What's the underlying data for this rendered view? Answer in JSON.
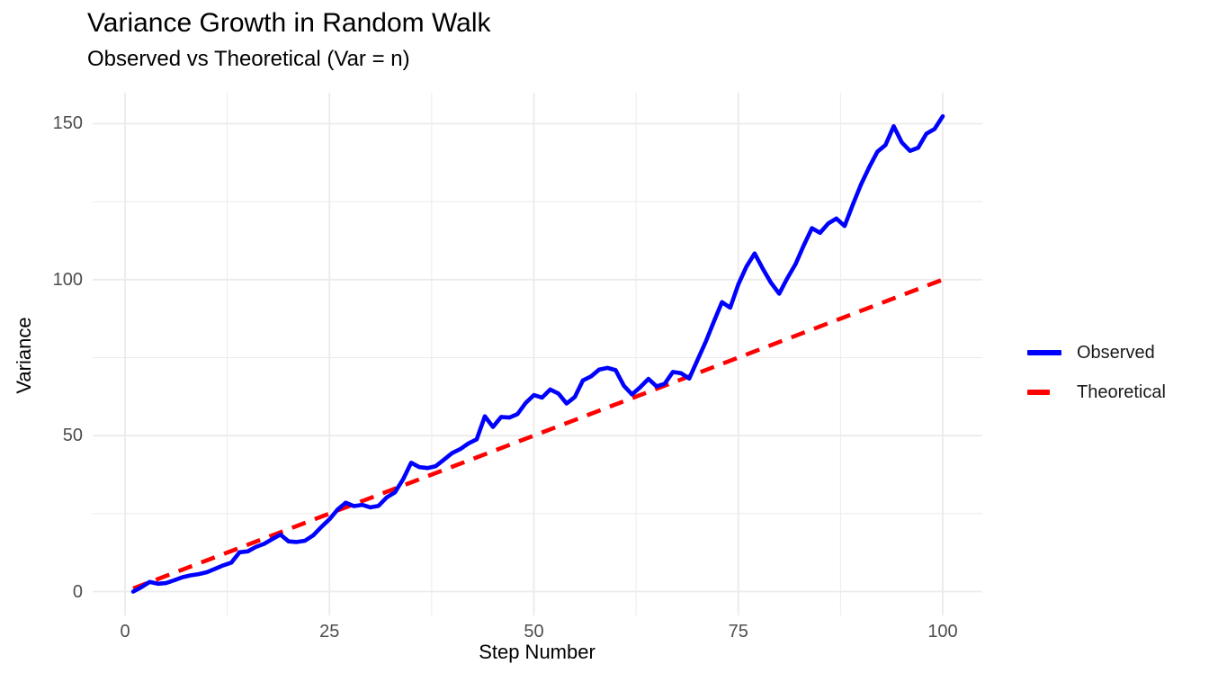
{
  "chart": {
    "title": "Variance Growth in Random Walk",
    "subtitle": "Observed vs Theoretical (Var = n)",
    "xlabel": "Step Number",
    "ylabel": "Variance"
  },
  "legend": {
    "position": "right",
    "items": [
      {
        "label": "Observed",
        "color": "#0000FF",
        "style": "solid"
      },
      {
        "label": "Theoretical",
        "color": "#FF0000",
        "style": "dashed"
      }
    ]
  },
  "colors": {
    "background": "#FFFFFF",
    "grid": "#EBEBEB",
    "tick_text": "#4D4D4D",
    "title_text": "#000000",
    "observed": "#0000FF",
    "theoretical": "#FF0000"
  },
  "chart_data": {
    "type": "line",
    "title": "Variance Growth in Random Walk",
    "subtitle": "Observed vs Theoretical (Var = n)",
    "xlabel": "Step Number",
    "ylabel": "Variance",
    "xlim": [
      -4,
      105
    ],
    "ylim": [
      -8,
      160
    ],
    "x_ticks": [
      0,
      25,
      50,
      75,
      100
    ],
    "y_ticks": [
      0,
      50,
      100,
      150
    ],
    "x_minor_ticks": [
      12.5,
      37.5,
      62.5,
      87.5
    ],
    "y_minor_ticks": [
      25,
      75,
      125
    ],
    "grid": true,
    "legend_position": "right",
    "series": [
      {
        "name": "Observed",
        "color": "#0000FF",
        "style": "solid",
        "x_start": 1,
        "x_step": 1,
        "values": [
          0.0,
          1.4,
          3.1,
          2.5,
          2.7,
          3.6,
          4.6,
          5.2,
          5.6,
          6.2,
          7.3,
          8.4,
          9.3,
          12.6,
          12.9,
          14.3,
          15.3,
          16.8,
          18.3,
          16.1,
          15.9,
          16.3,
          18.0,
          20.7,
          23.2,
          26.3,
          28.5,
          27.4,
          27.8,
          27.0,
          27.5,
          30.2,
          31.8,
          36.0,
          41.3,
          39.9,
          39.6,
          40.2,
          42.3,
          44.4,
          45.7,
          47.5,
          48.8,
          56.2,
          52.8,
          56.0,
          55.8,
          56.9,
          60.5,
          63.0,
          62.2,
          64.8,
          63.5,
          60.3,
          62.4,
          67.7,
          69.0,
          71.2,
          71.7,
          71.0,
          66.0,
          63.2,
          65.5,
          68.2,
          65.8,
          66.6,
          70.4,
          70.0,
          68.3,
          74.2,
          80.0,
          86.5,
          92.8,
          91.0,
          98.5,
          104.2,
          108.4,
          103.5,
          99.0,
          95.5,
          100.5,
          105.0,
          111.0,
          116.5,
          115.0,
          118.0,
          119.6,
          117.2,
          124.0,
          130.5,
          136.0,
          141.0,
          143.2,
          149.2,
          144.0,
          141.3,
          142.3,
          146.8,
          148.3,
          152.4
        ]
      },
      {
        "name": "Theoretical",
        "color": "#FF0000",
        "style": "dashed",
        "formula": "Var = n",
        "x": [
          1,
          100
        ],
        "values": [
          1,
          100
        ]
      }
    ]
  }
}
